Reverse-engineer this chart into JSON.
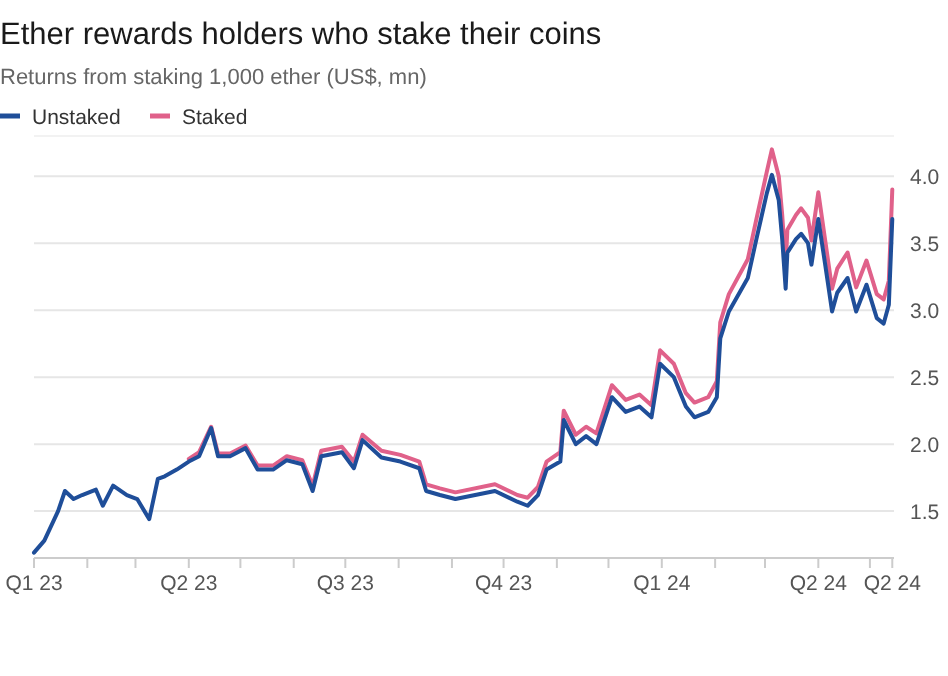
{
  "chart_data": {
    "type": "line",
    "title": "Ether rewards holders who stake their coins",
    "subtitle": "Returns from staking 1,000 ether (US$, mn)",
    "x": [
      "2023-01-01",
      "2023-01-07",
      "2023-01-15",
      "2023-01-19",
      "2023-01-24",
      "2023-01-29",
      "2023-02-06",
      "2023-02-10",
      "2023-02-16",
      "2023-02-24",
      "2023-03-02",
      "2023-03-09",
      "2023-03-14",
      "2023-03-18",
      "2023-03-25",
      "2023-04-01",
      "2023-04-07",
      "2023-04-14",
      "2023-04-18",
      "2023-04-25",
      "2023-05-04",
      "2023-05-11",
      "2023-05-20",
      "2023-05-28",
      "2023-06-06",
      "2023-06-12",
      "2023-06-17",
      "2023-06-29",
      "2023-07-06",
      "2023-07-11",
      "2023-07-22",
      "2023-08-02",
      "2023-08-13",
      "2023-08-17",
      "2023-08-25",
      "2023-09-03",
      "2023-09-26",
      "2023-10-09",
      "2023-10-15",
      "2023-10-21",
      "2023-10-26",
      "2023-11-03",
      "2023-11-05",
      "2023-11-12",
      "2023-11-18",
      "2023-11-24",
      "2023-12-03",
      "2023-12-11",
      "2023-12-19",
      "2023-12-26",
      "2023-12-31",
      "2024-01-08",
      "2024-01-15",
      "2024-01-20",
      "2024-01-28",
      "2024-02-02",
      "2024-02-04",
      "2024-02-09",
      "2024-02-20",
      "2024-02-25",
      "2024-03-02",
      "2024-03-05",
      "2024-03-09",
      "2024-03-11",
      "2024-03-13",
      "2024-03-14",
      "2024-03-19",
      "2024-03-22",
      "2024-03-26",
      "2024-03-28",
      "2024-04-01",
      "2024-04-05",
      "2024-04-09",
      "2024-04-12",
      "2024-04-18",
      "2024-04-23",
      "2024-04-29",
      "2024-05-05",
      "2024-05-09",
      "2024-05-12",
      "2024-05-14"
    ],
    "series": [
      {
        "name": "Unstaked",
        "color": "#1f4e99",
        "values": [
          1.19,
          1.28,
          1.5,
          1.65,
          1.59,
          1.62,
          1.66,
          1.54,
          1.69,
          1.62,
          1.59,
          1.44,
          1.74,
          1.76,
          1.81,
          1.87,
          1.91,
          2.12,
          1.91,
          1.91,
          1.97,
          1.81,
          1.81,
          1.88,
          1.85,
          1.65,
          1.91,
          1.94,
          1.82,
          2.03,
          1.9,
          1.87,
          1.82,
          1.65,
          1.62,
          1.59,
          1.65,
          1.57,
          1.54,
          1.62,
          1.81,
          1.87,
          2.18,
          2.0,
          2.06,
          2.0,
          2.35,
          2.24,
          2.28,
          2.2,
          2.6,
          2.5,
          2.28,
          2.2,
          2.24,
          2.35,
          2.79,
          2.99,
          3.24,
          3.53,
          3.87,
          4.01,
          3.82,
          3.53,
          3.16,
          3.43,
          3.53,
          3.57,
          3.5,
          3.34,
          3.68,
          3.34,
          2.99,
          3.13,
          3.24,
          2.99,
          3.19,
          2.94,
          2.9,
          3.04,
          3.68
        ]
      },
      {
        "name": "Staked",
        "color": "#e0618a",
        "values": [
          null,
          null,
          null,
          null,
          null,
          null,
          null,
          null,
          null,
          null,
          null,
          null,
          null,
          null,
          null,
          1.89,
          1.94,
          2.13,
          1.93,
          1.93,
          1.99,
          1.84,
          1.84,
          1.91,
          1.88,
          1.69,
          1.95,
          1.98,
          1.87,
          2.07,
          1.95,
          1.92,
          1.87,
          1.7,
          1.67,
          1.64,
          1.7,
          1.62,
          1.6,
          1.68,
          1.87,
          1.94,
          2.25,
          2.07,
          2.13,
          2.08,
          2.44,
          2.33,
          2.37,
          2.29,
          2.7,
          2.6,
          2.38,
          2.31,
          2.35,
          2.47,
          2.91,
          3.12,
          3.38,
          3.68,
          4.03,
          4.2,
          4.0,
          3.71,
          3.33,
          3.6,
          3.71,
          3.76,
          3.69,
          3.52,
          3.88,
          3.52,
          3.16,
          3.31,
          3.43,
          3.17,
          3.37,
          3.12,
          3.08,
          3.22,
          3.9
        ]
      }
    ],
    "xlim": [
      "2023-01-01",
      "2024-05-15"
    ],
    "xticks": [
      {
        "value": "2023-01-01",
        "label": "Q1 23"
      },
      {
        "value": "2023-02-01",
        "label": null
      },
      {
        "value": "2023-03-01",
        "label": null
      },
      {
        "value": "2023-04-01",
        "label": "Q2 23"
      },
      {
        "value": "2023-05-01",
        "label": null
      },
      {
        "value": "2023-06-01",
        "label": null
      },
      {
        "value": "2023-07-01",
        "label": "Q3 23"
      },
      {
        "value": "2023-08-01",
        "label": null
      },
      {
        "value": "2023-09-01",
        "label": null
      },
      {
        "value": "2023-10-01",
        "label": "Q4 23"
      },
      {
        "value": "2023-11-01",
        "label": null
      },
      {
        "value": "2023-12-01",
        "label": null
      },
      {
        "value": "2024-01-01",
        "label": "Q1 24"
      },
      {
        "value": "2024-02-01",
        "label": null
      },
      {
        "value": "2024-03-01",
        "label": null
      },
      {
        "value": "2024-04-01",
        "label": "Q2 24"
      },
      {
        "value": "2024-05-01",
        "label": null
      },
      {
        "value": "2024-05-14",
        "label": "Q2 24"
      }
    ],
    "ylim": [
      1.15,
      4.3
    ],
    "yticks": [
      {
        "value": 1.5,
        "label": "1.5"
      },
      {
        "value": 2,
        "label": "2.0"
      },
      {
        "value": 2.5,
        "label": "2.5"
      },
      {
        "value": 3,
        "label": "3.0"
      },
      {
        "value": 3.5,
        "label": "3.5"
      },
      {
        "value": 4,
        "label": "4.0"
      }
    ],
    "grid": "y",
    "legend": "top left",
    "line_style": "solid"
  }
}
